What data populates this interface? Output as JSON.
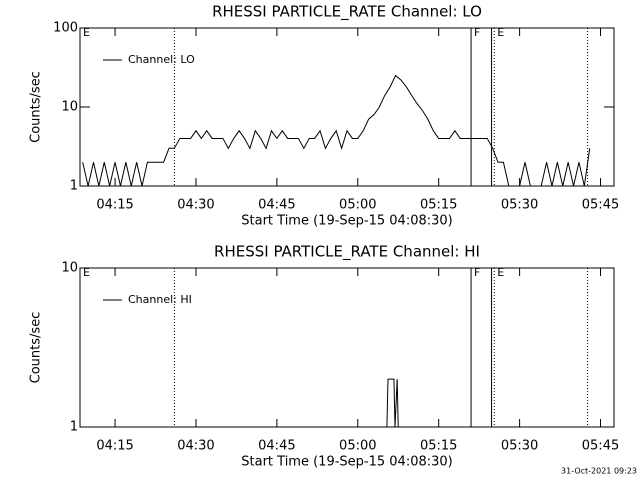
{
  "chart_data": [
    {
      "type": "line",
      "title": "RHESSI PARTICLE_RATE Channel: LO",
      "xlabel": "Start Time (19-Sep-15 04:08:30)",
      "ylabel": "Counts/sec",
      "log_y": true,
      "xlim": [
        248.5,
        347.5
      ],
      "ylim": [
        1,
        100
      ],
      "xticks": [
        {
          "value": 255,
          "label": "04:15"
        },
        {
          "value": 270,
          "label": "04:30"
        },
        {
          "value": 285,
          "label": "04:45"
        },
        {
          "value": 300,
          "label": "05:00"
        },
        {
          "value": 315,
          "label": "05:15"
        },
        {
          "value": 330,
          "label": "05:30"
        },
        {
          "value": 345,
          "label": "05:45"
        }
      ],
      "yticks": [
        1,
        10,
        100
      ],
      "x": [
        249,
        250,
        251,
        252,
        253,
        254,
        255,
        256,
        257,
        258,
        259,
        260,
        261,
        262,
        263,
        264,
        265,
        266,
        267,
        268,
        269,
        270,
        271,
        272,
        273,
        274,
        275,
        276,
        277,
        278,
        279,
        280,
        281,
        282,
        283,
        284,
        285,
        286,
        287,
        288,
        289,
        290,
        291,
        292,
        293,
        294,
        295,
        296,
        297,
        298,
        299,
        300,
        301,
        302,
        303,
        304,
        305,
        306,
        307,
        308,
        309,
        310,
        311,
        312,
        313,
        314,
        315,
        316,
        317,
        318,
        319,
        320,
        321,
        322,
        323,
        324,
        325,
        326,
        327,
        328,
        329,
        330,
        331,
        332,
        333,
        334,
        335,
        336,
        337,
        338,
        339,
        340,
        341,
        342,
        343
      ],
      "series": [
        {
          "name": "Channel: LO",
          "color": "#000000",
          "values": [
            2,
            1,
            2,
            1,
            2,
            1,
            2,
            1,
            2,
            1,
            2,
            1,
            2,
            2,
            2,
            2,
            3,
            3,
            4,
            4,
            4,
            5,
            4,
            5,
            4,
            4,
            4,
            3,
            4,
            5,
            4,
            3,
            5,
            4,
            3,
            5,
            4,
            5,
            4,
            4,
            4,
            3,
            4,
            4,
            5,
            3,
            4,
            5,
            3,
            5,
            4,
            4,
            5,
            7,
            8,
            10,
            14,
            18,
            25,
            22,
            18,
            14,
            11,
            9,
            7,
            5,
            4,
            4,
            4,
            5,
            4,
            4,
            4,
            4,
            4,
            4,
            3,
            2,
            2,
            1,
            1,
            1,
            2,
            1,
            1,
            1,
            2,
            1,
            2,
            1,
            2,
            1,
            2,
            1,
            3
          ]
        }
      ],
      "vlines": [
        {
          "x": 266,
          "style": "dotted"
        },
        {
          "x": 321,
          "style": "solid"
        },
        {
          "x": 324.8,
          "style": "solid"
        },
        {
          "x": 325.3,
          "style": "dotted"
        },
        {
          "x": 342.6,
          "style": "dotted"
        }
      ],
      "flags": [
        {
          "label": "E",
          "x": 248.5
        },
        {
          "label": "F",
          "x": 321
        },
        {
          "label": "E",
          "x": 325.3
        }
      ]
    },
    {
      "type": "line",
      "title": "RHESSI PARTICLE_RATE Channel: HI",
      "xlabel": "Start Time (19-Sep-15 04:08:30)",
      "ylabel": "Counts/sec",
      "log_y": true,
      "xlim": [
        248.5,
        347.5
      ],
      "ylim": [
        1,
        10
      ],
      "xticks": [
        {
          "value": 255,
          "label": "04:15"
        },
        {
          "value": 270,
          "label": "04:30"
        },
        {
          "value": 285,
          "label": "04:45"
        },
        {
          "value": 300,
          "label": "05:00"
        },
        {
          "value": 315,
          "label": "05:15"
        },
        {
          "value": 330,
          "label": "05:30"
        },
        {
          "value": 345,
          "label": "05:45"
        }
      ],
      "yticks": [
        1,
        10
      ],
      "x": [
        305.4,
        305.6,
        306.7,
        306.9,
        307.3,
        307.5
      ],
      "series": [
        {
          "name": "Channel: HI",
          "color": "#000000",
          "values": [
            1,
            2,
            2,
            1,
            2,
            1
          ]
        }
      ],
      "vlines": [
        {
          "x": 266,
          "style": "dotted"
        },
        {
          "x": 321,
          "style": "solid"
        },
        {
          "x": 324.8,
          "style": "solid"
        },
        {
          "x": 325.3,
          "style": "dotted"
        },
        {
          "x": 342.6,
          "style": "dotted"
        }
      ],
      "flags": [
        {
          "label": "E",
          "x": 248.5
        },
        {
          "label": "F",
          "x": 321
        },
        {
          "label": "E",
          "x": 325.3
        }
      ]
    }
  ],
  "footer": "31-Oct-2021 09:23"
}
